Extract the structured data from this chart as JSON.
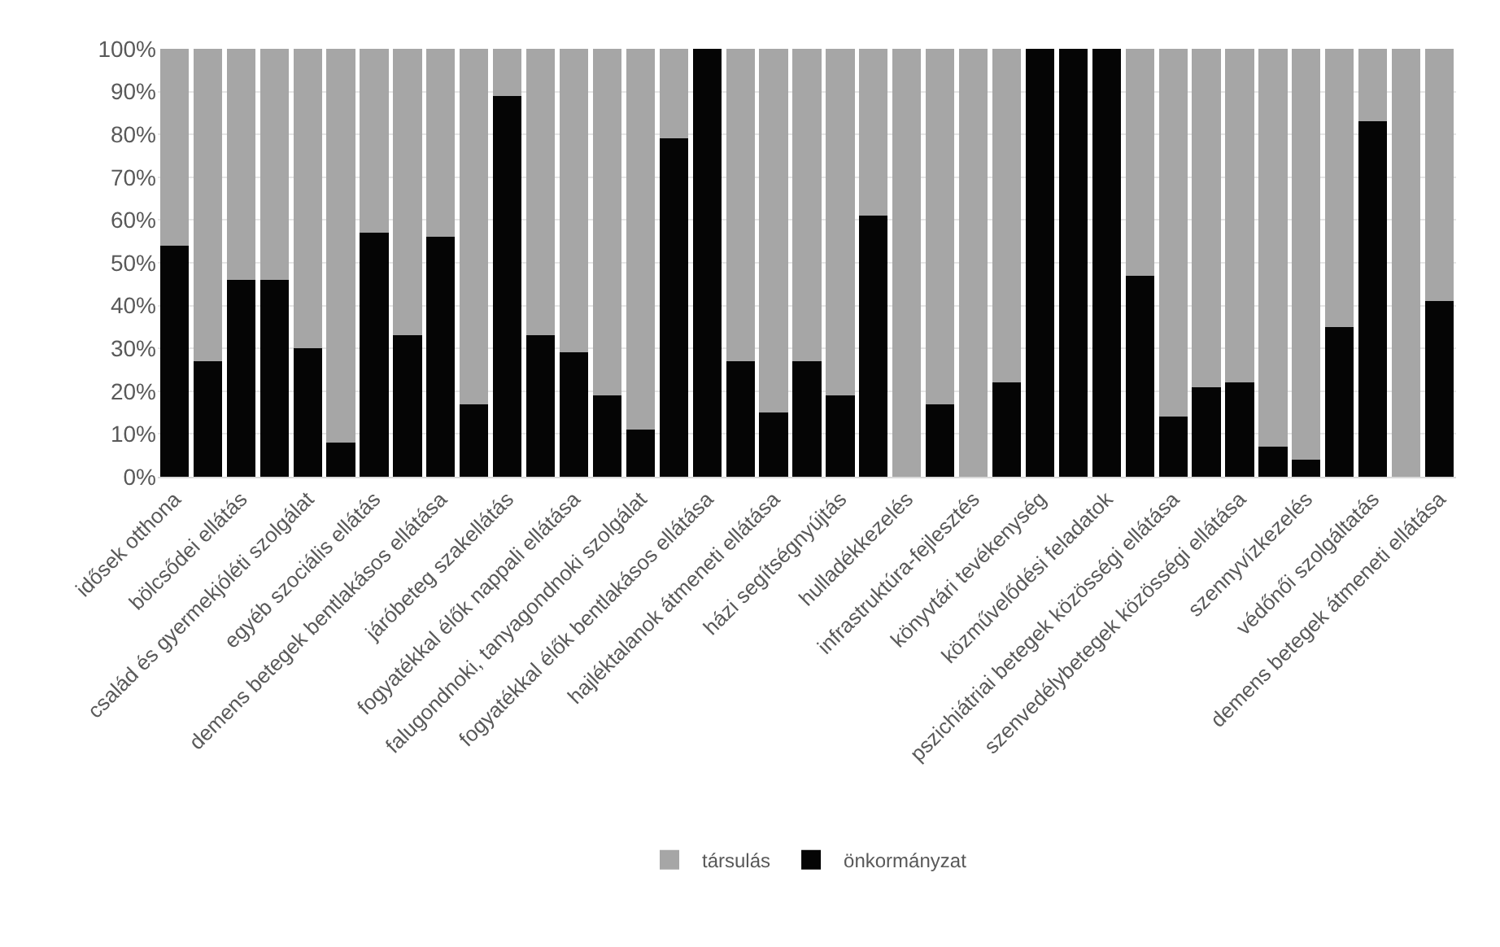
{
  "chart_data": {
    "type": "bar",
    "stacked": true,
    "categories": [
      "idősek otthona",
      null,
      "bölcsődei ellátás",
      null,
      "család és gyermekjóléti szolgálat",
      null,
      "egyéb szociális ellátás",
      null,
      "demens betegek bentlakásos ellátása",
      null,
      "járóbeteg szakellátás",
      null,
      "fogyatékkal élők nappali ellátása",
      null,
      "falugondnoki, tanyagondnoki szolgálat",
      null,
      "fogyatékkal élők bentlakásos ellátása",
      null,
      "hajléktalanok átmeneti ellátása",
      null,
      "házi segítségnyújtás",
      null,
      "hulladékkezelés",
      null,
      "infrastruktúra-fejlesztés",
      null,
      "könyvtári tevékenység",
      null,
      "közművelődési feladatok",
      null,
      "pszichiátriai betegek közösségi ellátása",
      null,
      "szenvedélybetegek közösségi ellátása",
      null,
      "szennyvízkezelés",
      null,
      "védőnői szolgáltatás",
      null,
      "demens betegek átmeneti ellátása"
    ],
    "series": [
      {
        "name": "önkormányzat",
        "color": "#050505",
        "values": [
          54,
          27,
          46,
          46,
          30,
          8,
          57,
          33,
          56,
          17,
          89,
          33,
          29,
          19,
          11,
          79,
          100,
          27,
          15,
          27,
          19,
          61,
          0,
          17,
          0,
          22,
          100,
          100,
          100,
          47,
          14,
          21,
          22,
          7,
          4,
          35,
          83,
          0,
          41
        ]
      },
      {
        "name": "társulás",
        "color": "#a6a6a6",
        "values": [
          46,
          73,
          54,
          54,
          70,
          92,
          43,
          67,
          44,
          83,
          11,
          67,
          71,
          81,
          89,
          21,
          0,
          73,
          85,
          73,
          81,
          39,
          100,
          83,
          100,
          78,
          0,
          0,
          0,
          53,
          86,
          79,
          78,
          93,
          96,
          65,
          17,
          100,
          59
        ]
      }
    ],
    "ylim": [
      0,
      100
    ],
    "yticks": [
      {
        "value": 0,
        "label": "0%"
      },
      {
        "value": 10,
        "label": "10%"
      },
      {
        "value": 20,
        "label": "20%"
      },
      {
        "value": 30,
        "label": "30%"
      },
      {
        "value": 40,
        "label": "40%"
      },
      {
        "value": 50,
        "label": "50%"
      },
      {
        "value": 60,
        "label": "60%"
      },
      {
        "value": 70,
        "label": "70%"
      },
      {
        "value": 80,
        "label": "80%"
      },
      {
        "value": 90,
        "label": "90%"
      },
      {
        "value": 100,
        "label": "100%"
      }
    ],
    "grid": "y",
    "legend": "bottom"
  }
}
